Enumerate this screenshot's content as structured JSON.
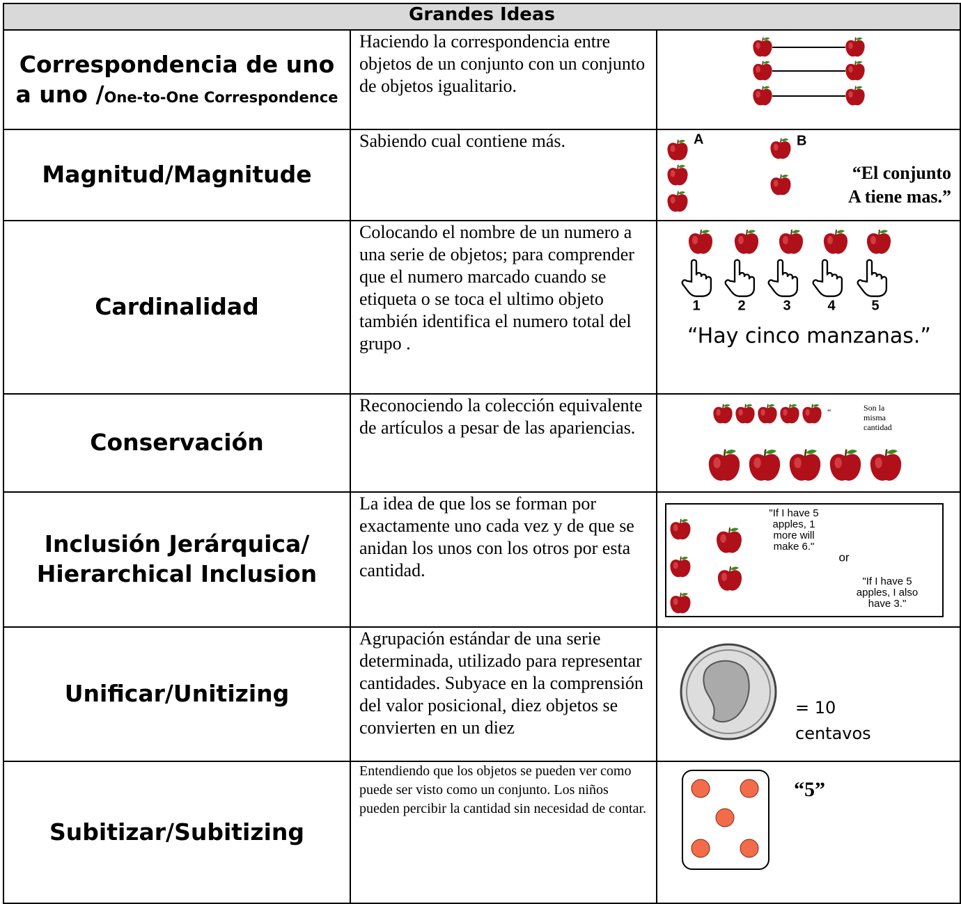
{
  "header": {
    "title": "Grandes Ideas"
  },
  "rows": [
    {
      "term": "Correspondencia de uno a uno /",
      "term_en": "One-to-One Correspondence",
      "description": "Haciendo la correspondencia entre objetos de un conjunto con un conjunto de objetos igualitario."
    },
    {
      "term": "Magnitud/Magnitude",
      "description": "Sabiendo cual contiene más.",
      "illustration": {
        "label_a": "A",
        "label_b": "B",
        "caption": [
          "“El conjunto",
          "A tiene mas.”"
        ]
      }
    },
    {
      "term": "Cardinalidad",
      "description": "Colocando el nombre de un numero a una serie de objetos; para comprender que el numero marcado cuando se etiqueta o se toca el ultimo objeto también identifica el numero total del grupo  .",
      "illustration": {
        "numbers": [
          "1",
          "2",
          "3",
          "4",
          "5"
        ],
        "caption": "“Hay cinco manzanas.”"
      }
    },
    {
      "term": "Conservación",
      "description": "Reconociendo la colección equivalente de artículos a pesar de las apariencias.",
      "illustration": {
        "caption": [
          "“",
          "Son la",
          "misma",
          "cantidad"
        ]
      }
    },
    {
      "term": "Inclusión Jerárquica/ Hierarchical Inclusion",
      "description": "La idea de que los se forman por exactamente uno cada vez y de que  se anidan los unos con los otros  por esta cantidad.",
      "illustration": {
        "quote_1": [
          "\"If I have 5",
          "apples, 1",
          "more will",
          "make 6.\""
        ],
        "or": "or",
        "quote_2": [
          "\"If I have 5",
          "apples, I also",
          "have 3.\""
        ]
      }
    },
    {
      "term": "Unificar/Unitizing",
      "description": "Agrupación estándar de una serie determinada, utilizado para representar cantidades. Subyace en la comprensión del valor posicional, diez objetos se convierten en un diez",
      "illustration": {
        "caption": [
          "= 10",
          "centavos"
        ]
      }
    },
    {
      "term": "Subitizar/Subitizing",
      "description": "Entendiendo que los objetos se pueden ver como puede ser visto como un conjunto. Los niños pueden percibir la cantidad sin necesidad de contar.",
      "illustration": {
        "caption": "“5”"
      }
    }
  ]
}
